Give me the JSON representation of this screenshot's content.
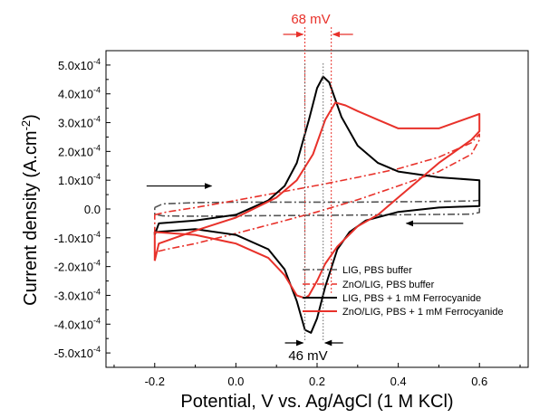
{
  "chart_data": {
    "type": "line",
    "xlabel": "Potential, V vs. Ag/AgCl (1 M KCl)",
    "ylabel_main": "Current density (A.cm",
    "ylabel_sup": "-2",
    "ylabel_close": ")",
    "xlim": [
      -0.32,
      0.72
    ],
    "ylim": [
      -0.00055,
      0.00055
    ],
    "x_ticks": [
      {
        "value": -0.2,
        "label": "-0.2"
      },
      {
        "value": 0.0,
        "label": "0.0"
      },
      {
        "value": 0.2,
        "label": "0.2"
      },
      {
        "value": 0.4,
        "label": "0.4"
      },
      {
        "value": 0.6,
        "label": "0.6"
      }
    ],
    "y_ticks": [
      {
        "value": 0.0005,
        "label": "5.0x10",
        "exp": "-4"
      },
      {
        "value": 0.0004,
        "label": "4.0x10",
        "exp": "-4"
      },
      {
        "value": 0.0003,
        "label": "3.0x10",
        "exp": "-4"
      },
      {
        "value": 0.0002,
        "label": "2.0x10",
        "exp": "-4"
      },
      {
        "value": 0.0001,
        "label": "1.0x10",
        "exp": "-4"
      },
      {
        "value": 0.0,
        "label": "0.0",
        "exp": ""
      },
      {
        "value": -0.0001,
        "label": "-1.0x10",
        "exp": "-4"
      },
      {
        "value": -0.0002,
        "label": "-2.0x10",
        "exp": "-4"
      },
      {
        "value": -0.0003,
        "label": "-3.0x10",
        "exp": "-4"
      },
      {
        "value": -0.0004,
        "label": "-4.0x10",
        "exp": "-4"
      },
      {
        "value": -0.0005,
        "label": "-5.0x10",
        "exp": "-4"
      }
    ],
    "series": [
      {
        "name": "LIG, PBS buffer",
        "color": "#555555",
        "dash": "dashdot",
        "x": [
          -0.2,
          -0.18,
          -0.1,
          0.0,
          0.1,
          0.2,
          0.3,
          0.4,
          0.5,
          0.58,
          0.6,
          0.6,
          0.58,
          0.5,
          0.4,
          0.3,
          0.2,
          0.1,
          0.0,
          -0.1,
          -0.18,
          -0.2,
          -0.2
        ],
        "y": [
          5e-06,
          1.8e-05,
          2.2e-05,
          2.4e-05,
          2.4e-05,
          2.4e-05,
          2.4e-05,
          2.5e-05,
          2.6e-05,
          2.8e-05,
          3e-05,
          -1.2e-05,
          -1.8e-05,
          -1.9e-05,
          -2e-05,
          -2.1e-05,
          -2.2e-05,
          -2.3e-05,
          -2.4e-05,
          -2.5e-05,
          -2.4e-05,
          -1.8e-05,
          5e-06
        ]
      },
      {
        "name": "ZnO/LIG, PBS buffer",
        "color": "#e8312a",
        "dash": "dashdot",
        "x": [
          -0.2,
          -0.17,
          -0.1,
          0.0,
          0.1,
          0.2,
          0.3,
          0.4,
          0.5,
          0.58,
          0.6,
          0.6,
          0.58,
          0.5,
          0.4,
          0.3,
          0.2,
          0.1,
          0.0,
          -0.1,
          -0.17,
          -0.2,
          -0.2
        ],
        "y": [
          -2e-05,
          -1e-05,
          5e-06,
          3e-05,
          5.6e-05,
          8.2e-05,
          0.00011,
          0.00014,
          0.00018,
          0.00023,
          0.00026,
          0.00024,
          0.00019,
          0.00013,
          8e-05,
          3.2e-05,
          -1e-05,
          -4.8e-05,
          -8.5e-05,
          -0.00012,
          -0.00014,
          -0.00015,
          -2e-05
        ]
      },
      {
        "name": "LIG, PBS + 1 mM Ferrocyanide",
        "color": "#000000",
        "dash": "solid",
        "x": [
          -0.2,
          -0.19,
          -0.1,
          0.0,
          0.08,
          0.12,
          0.15,
          0.18,
          0.2,
          0.215,
          0.23,
          0.26,
          0.3,
          0.35,
          0.4,
          0.5,
          0.6,
          0.6,
          0.55,
          0.5,
          0.4,
          0.32,
          0.28,
          0.25,
          0.22,
          0.2,
          0.185,
          0.17,
          0.15,
          0.12,
          0.08,
          0.0,
          -0.1,
          -0.2,
          -0.2
        ],
        "y": [
          -9e-05,
          -5e-05,
          -4e-05,
          -2e-05,
          3e-05,
          8e-05,
          0.00016,
          0.00031,
          0.00042,
          0.00046,
          0.00044,
          0.00032,
          0.00022,
          0.00016,
          0.00013,
          0.00011,
          0.0001,
          1e-05,
          8e-06,
          5e-06,
          -1e-05,
          -4e-05,
          -8e-05,
          -0.00014,
          -0.00027,
          -0.00038,
          -0.00043,
          -0.00042,
          -0.00032,
          -0.00021,
          -0.00014,
          -9e-05,
          -7e-05,
          -8e-05,
          -9e-05
        ]
      },
      {
        "name": "ZnO/LIG, PBS + 1 mM Ferrocyanide",
        "color": "#e8312a",
        "dash": "solid",
        "x": [
          -0.2,
          -0.19,
          -0.1,
          0.0,
          0.1,
          0.15,
          0.19,
          0.22,
          0.245,
          0.27,
          0.3,
          0.35,
          0.4,
          0.5,
          0.6,
          0.6,
          0.58,
          0.5,
          0.45,
          0.4,
          0.35,
          0.3,
          0.25,
          0.22,
          0.2,
          0.18,
          0.17,
          0.15,
          0.12,
          0.08,
          0.0,
          -0.1,
          -0.2,
          -0.2
        ],
        "y": [
          -0.00018,
          -0.00012,
          -7.5e-05,
          -3e-05,
          4e-05,
          0.0001,
          0.00019,
          0.00031,
          0.00037,
          0.00036,
          0.00034,
          0.00031,
          0.00028,
          0.00028,
          0.00033,
          0.00027,
          0.00024,
          0.00016,
          0.0001,
          4e-05,
          -2e-05,
          -6e-05,
          -0.00013,
          -0.00019,
          -0.00025,
          -0.0003,
          -0.00031,
          -0.0003,
          -0.00023,
          -0.00017,
          -0.00012,
          -9e-05,
          -8e-05,
          -0.00018
        ]
      }
    ],
    "annotations": {
      "top_label": "68 mV",
      "top_color": "#e8312a",
      "bottom_label": "46 mV",
      "bottom_color": "#000000",
      "top_lines_x": [
        0.17,
        0.235
      ],
      "bottom_lines_x": [
        0.17,
        0.215
      ],
      "forward_arrow_y": 8e-05,
      "reverse_arrow_y": -5e-05
    },
    "legend_position": "bottom-right"
  }
}
